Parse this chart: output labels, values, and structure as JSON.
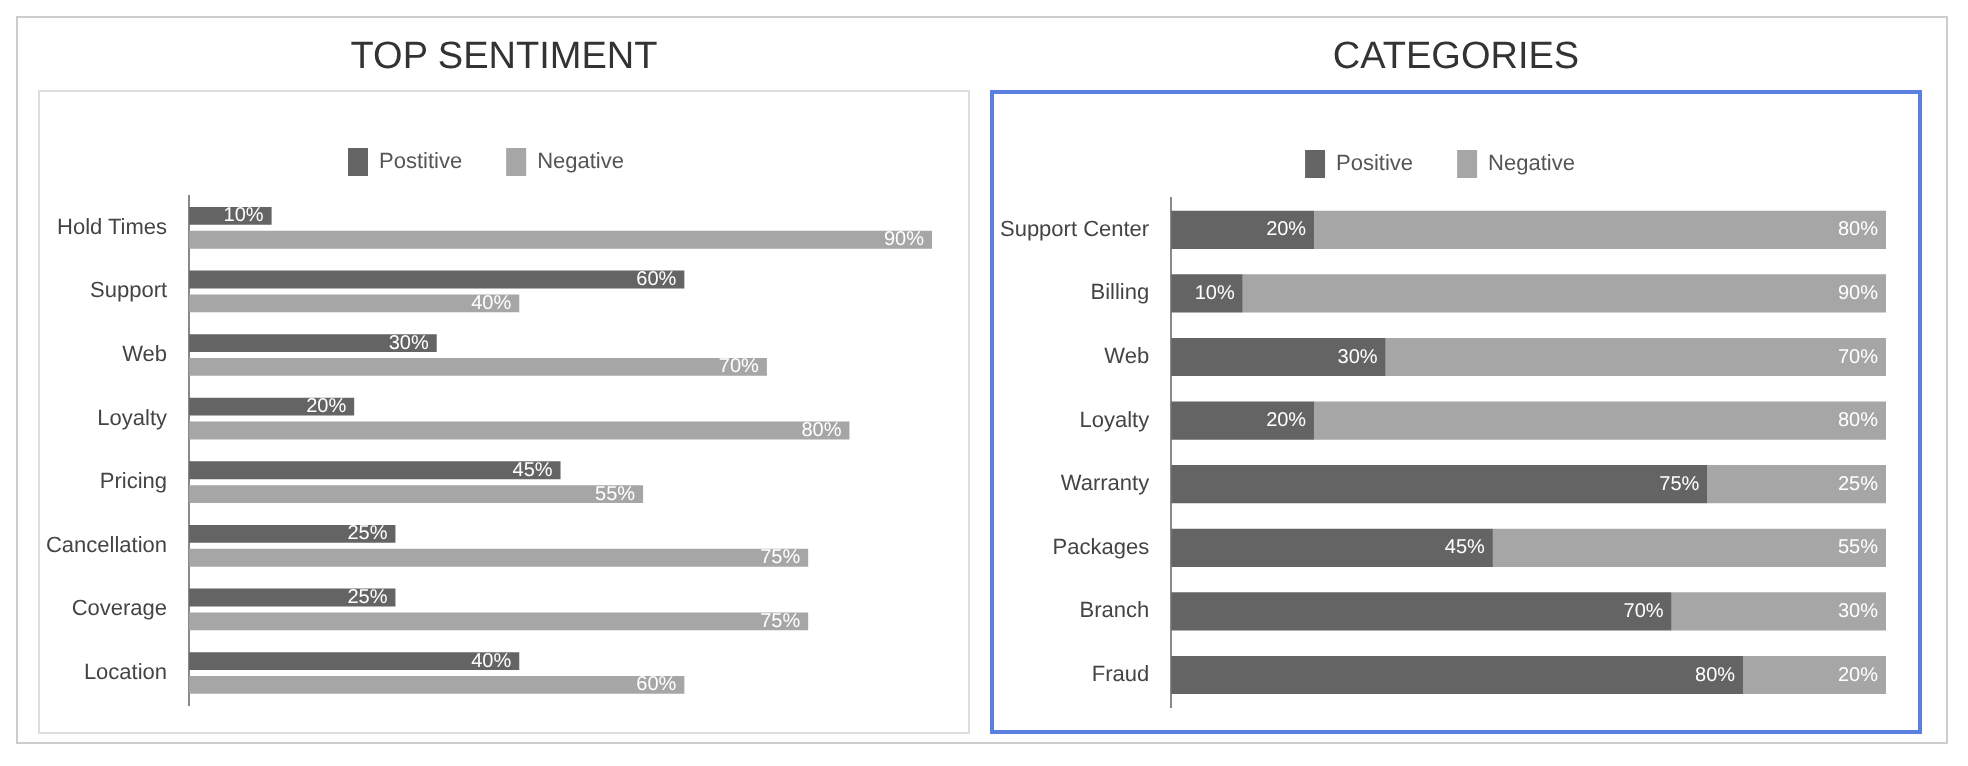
{
  "chart_data": [
    {
      "type": "bar",
      "title": "TOP  SENTIMENT",
      "orientation": "horizontal",
      "legend": "top",
      "categories": [
        "Hold Times",
        "Support",
        "Web",
        "Loyalty",
        "Pricing",
        "Cancellation",
        "Coverage",
        "Location"
      ],
      "series": [
        {
          "name": "Postitive",
          "color": "#646464",
          "values": [
            10,
            60,
            30,
            20,
            45,
            25,
            25,
            40
          ],
          "value_labels": [
            "10%",
            "60%",
            "30%",
            "20%",
            "45%",
            "25%",
            "25%",
            "40%"
          ]
        },
        {
          "name": "Negative",
          "color": "#a6a6a6",
          "values": [
            90,
            40,
            70,
            80,
            55,
            75,
            75,
            60
          ],
          "value_labels": [
            "90%",
            "40%",
            "70%",
            "80%",
            "55%",
            "75%",
            "75%",
            "60%"
          ]
        }
      ]
    },
    {
      "type": "bar",
      "title": "CATEGORIES",
      "orientation": "horizontal",
      "stacked": true,
      "legend": "top",
      "categories": [
        "Support Center",
        "Billing",
        "Web",
        "Loyalty",
        "Warranty",
        "Packages",
        "Branch",
        "Fraud"
      ],
      "series": [
        {
          "name": "Positive",
          "color": "#646464",
          "values": [
            20,
            10,
            30,
            20,
            75,
            45,
            70,
            80
          ],
          "value_labels": [
            "20%",
            "10%",
            "30%",
            "20%",
            "75%",
            "45%",
            "70%",
            "80%"
          ]
        },
        {
          "name": "Negative",
          "color": "#a6a6a6",
          "values": [
            80,
            90,
            70,
            80,
            25,
            55,
            30,
            20
          ],
          "value_labels": [
            "80%",
            "90%",
            "70%",
            "80%",
            "25%",
            "55%",
            "30%",
            "20%"
          ]
        }
      ]
    }
  ]
}
